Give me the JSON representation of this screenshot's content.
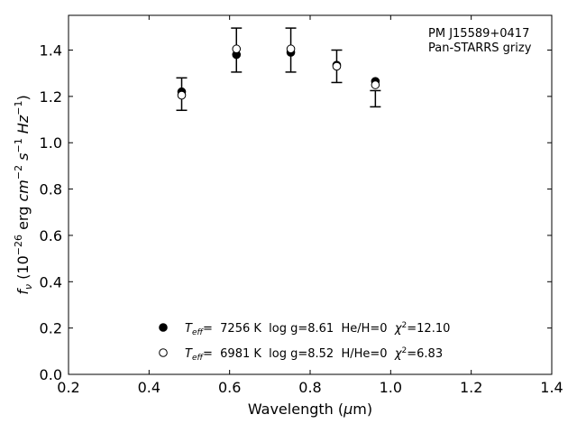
{
  "chart_data": {
    "type": "scatter",
    "xlabel": "Wavelength (μm)",
    "ylabel": "fν (10⁻²⁶ erg cm⁻² s⁻¹ Hz⁻¹)",
    "xlim": [
      0.2,
      1.4
    ],
    "ylim": [
      0.0,
      1.55
    ],
    "xticks": [
      "0.2",
      "0.4",
      "0.6",
      "0.8",
      "1.0",
      "1.2",
      "1.4"
    ],
    "yticks": [
      "0.0",
      "0.2",
      "0.4",
      "0.6",
      "0.8",
      "1.0",
      "1.2",
      "1.4"
    ],
    "grid": false,
    "legend_position": "lower-center",
    "annotation": [
      "PM J15589+0417",
      "Pan-STARRS grizy"
    ],
    "observed": {
      "x": [
        0.481,
        0.617,
        0.752,
        0.866,
        0.962
      ],
      "y": [
        1.21,
        1.4,
        1.4,
        1.33,
        1.19
      ],
      "yerr": [
        0.07,
        0.095,
        0.095,
        0.07,
        0.035
      ]
    },
    "series": [
      {
        "name": "Teff=  7256 K  log g=8.61  He/H=0  χ²=12.10",
        "marker": "filled-circle",
        "x": [
          0.481,
          0.617,
          0.752,
          0.866,
          0.962
        ],
        "y": [
          1.22,
          1.38,
          1.39,
          1.335,
          1.265
        ]
      },
      {
        "name": "Teff=  6981 K  log g=8.52  H/He=0  χ²=6.83",
        "marker": "open-circle",
        "x": [
          0.481,
          0.617,
          0.752,
          0.866,
          0.962
        ],
        "y": [
          1.205,
          1.405,
          1.405,
          1.33,
          1.25
        ]
      }
    ]
  }
}
